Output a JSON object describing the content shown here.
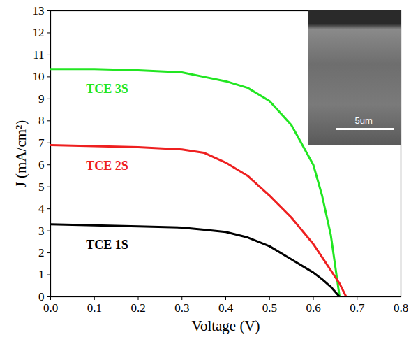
{
  "chart_data": {
    "type": "line",
    "x_label": "Voltage (V)",
    "y_label": "J (mA/cm²)",
    "x": [
      0,
      0.1,
      0.2,
      0.3,
      0.35,
      0.4,
      0.45,
      0.5,
      0.55,
      0.6,
      0.62,
      0.64,
      0.66,
      0.675
    ],
    "series": [
      {
        "name": "TCE 3S",
        "color": "#22e622",
        "values": [
          10.35,
          10.35,
          10.3,
          10.2,
          10.0,
          9.8,
          9.5,
          8.9,
          7.8,
          6.0,
          4.6,
          2.8,
          0,
          null
        ]
      },
      {
        "name": "TCE 2S",
        "color": "#ee2020",
        "values": [
          6.9,
          6.85,
          6.8,
          6.7,
          6.55,
          6.1,
          5.5,
          4.6,
          3.6,
          2.4,
          1.8,
          1.2,
          0.6,
          0
        ]
      },
      {
        "name": "TCE 1S",
        "color": "#000000",
        "values": [
          3.3,
          3.25,
          3.2,
          3.15,
          3.05,
          2.95,
          2.7,
          2.3,
          1.7,
          1.1,
          0.8,
          0.45,
          0,
          null
        ]
      }
    ],
    "xlim": [
      0,
      0.8
    ],
    "xticks": [
      {
        "value": 0,
        "label": "0.0"
      },
      0.1,
      0.2,
      0.3,
      0.4,
      0.5,
      0.6,
      0.7,
      0.8
    ],
    "ylim": [
      0,
      13
    ],
    "yticks": [
      0,
      1,
      2,
      3,
      4,
      5,
      6,
      7,
      8,
      9,
      10,
      11,
      12,
      13
    ],
    "annotations": [
      "5um"
    ],
    "grid": false
  }
}
